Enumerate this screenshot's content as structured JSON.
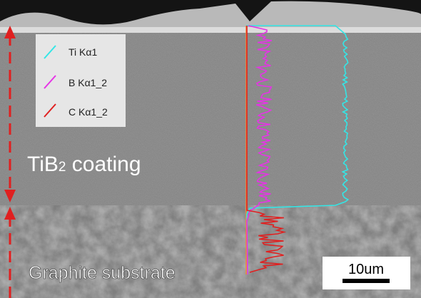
{
  "legend": {
    "items": [
      {
        "label": "Ti Kα1"
      },
      {
        "label": "B Kα1_2"
      },
      {
        "label": "C Kα1_2"
      }
    ]
  },
  "labels": {
    "coating": {
      "main": "TiB",
      "sub": "2",
      "rest": " coating"
    },
    "substrate": "Graphite substrate"
  },
  "scale_bar": {
    "label": "10um"
  }
}
